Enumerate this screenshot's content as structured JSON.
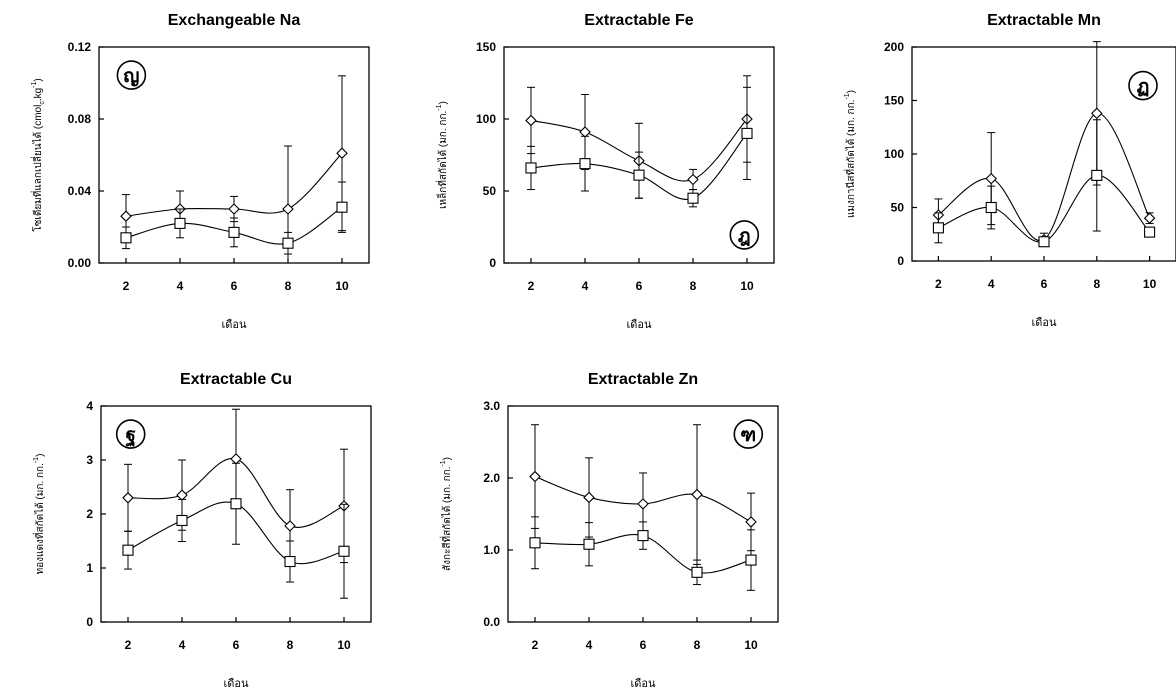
{
  "chart_data": [
    {
      "type": "line",
      "title": "Exchangeable Na",
      "xlabel": "เดือน",
      "ylabel": "โซเดียมที่แลกเปลี่ยนได้ (cmol",
      "ylabel_sub": "c",
      "ylabel_post": ".kg",
      "ylabel_sup": "-1",
      "ylabel_end": ")",
      "badge": "ญ",
      "x": [
        2,
        4,
        6,
        8,
        10
      ],
      "xlim": [
        1,
        11
      ],
      "ylim": [
        0,
        0.12
      ],
      "yticks": [
        "0.00",
        "0.04",
        "0.08",
        "0.12"
      ],
      "series": [
        {
          "marker": "diamond",
          "values": [
            0.026,
            0.03,
            0.03,
            0.03,
            0.061
          ],
          "err": [
            0.012,
            0.01,
            0.007,
            0.035,
            0.043
          ]
        },
        {
          "marker": "square",
          "values": [
            0.014,
            0.022,
            0.017,
            0.011,
            0.031
          ],
          "err": [
            0.006,
            0.008,
            0.008,
            0.006,
            0.014
          ]
        }
      ]
    },
    {
      "type": "line",
      "title": "Extractable Fe",
      "xlabel": "เดือน",
      "ylabel": "เหล็กที่สกัดได้ (มก. กก.",
      "ylabel_sup": "-1",
      "ylabel_end": ")",
      "badge": "ฎ",
      "x": [
        2,
        4,
        6,
        8,
        10
      ],
      "xlim": [
        1,
        11
      ],
      "ylim": [
        0,
        150
      ],
      "yticks": [
        "0",
        "50",
        "100",
        "150"
      ],
      "series": [
        {
          "marker": "diamond",
          "values": [
            99,
            91,
            71,
            58,
            100
          ],
          "err": [
            23,
            26,
            26,
            7,
            30
          ]
        },
        {
          "marker": "square",
          "values": [
            66,
            69,
            61,
            45,
            90
          ],
          "err": [
            15,
            19,
            16,
            6,
            32
          ]
        }
      ]
    },
    {
      "type": "line",
      "title": "Extractable Mn",
      "xlabel": "เดือน",
      "ylabel": "แมงกานีสที่สกัดได้ (มก. กก.",
      "ylabel_sup": "-1",
      "ylabel_end": ")",
      "badge": "ฏ",
      "x": [
        2,
        4,
        6,
        8,
        10
      ],
      "xlim": [
        1,
        11
      ],
      "ylim": [
        0,
        200
      ],
      "yticks": [
        "0",
        "50",
        "100",
        "150",
        "200"
      ],
      "series": [
        {
          "marker": "diamond",
          "values": [
            43,
            77,
            20,
            138,
            40
          ],
          "err": [
            15,
            43,
            6,
            67,
            5
          ]
        },
        {
          "marker": "square",
          "values": [
            31,
            50,
            18,
            80,
            27
          ],
          "err": [
            14,
            20,
            3,
            52,
            4
          ]
        }
      ]
    },
    {
      "type": "line",
      "title": "Extractable Cu",
      "xlabel": "เดือน",
      "ylabel": "ทองแดงที่สกัดได้ (มก. กก.",
      "ylabel_sup": "-1",
      "ylabel_end": ")",
      "badge": "ฐ",
      "x": [
        2,
        4,
        6,
        8,
        10
      ],
      "xlim": [
        1,
        11
      ],
      "ylim": [
        0,
        4
      ],
      "yticks": [
        "0",
        "1",
        "2",
        "3",
        "4"
      ],
      "series": [
        {
          "marker": "diamond",
          "values": [
            2.3,
            2.35,
            3.02,
            1.78,
            2.15
          ],
          "err": [
            0.62,
            0.65,
            0.92,
            0.67,
            1.05
          ]
        },
        {
          "marker": "square",
          "values": [
            1.33,
            1.88,
            2.19,
            1.12,
            1.31
          ],
          "err": [
            0.35,
            0.39,
            0.75,
            0.38,
            0.87
          ]
        }
      ]
    },
    {
      "type": "line",
      "title": "Extractable Zn",
      "xlabel": "เดือน",
      "ylabel": "สังกะสีที่สกัดได้ (มก. กก.",
      "ylabel_sup": "-1",
      "ylabel_end": ")",
      "badge": "ฑ",
      "x": [
        2,
        4,
        6,
        8,
        10
      ],
      "xlim": [
        1,
        11
      ],
      "ylim": [
        0,
        3
      ],
      "yticks": [
        "0.0",
        "1.0",
        "2.0",
        "3.0"
      ],
      "series": [
        {
          "marker": "diamond",
          "values": [
            2.02,
            1.73,
            1.64,
            1.77,
            1.39
          ],
          "err": [
            0.72,
            0.55,
            0.43,
            0.97,
            0.4
          ]
        },
        {
          "marker": "square",
          "values": [
            1.1,
            1.08,
            1.2,
            0.69,
            0.86
          ],
          "err": [
            0.36,
            0.3,
            0.19,
            0.17,
            0.42
          ]
        }
      ]
    }
  ]
}
